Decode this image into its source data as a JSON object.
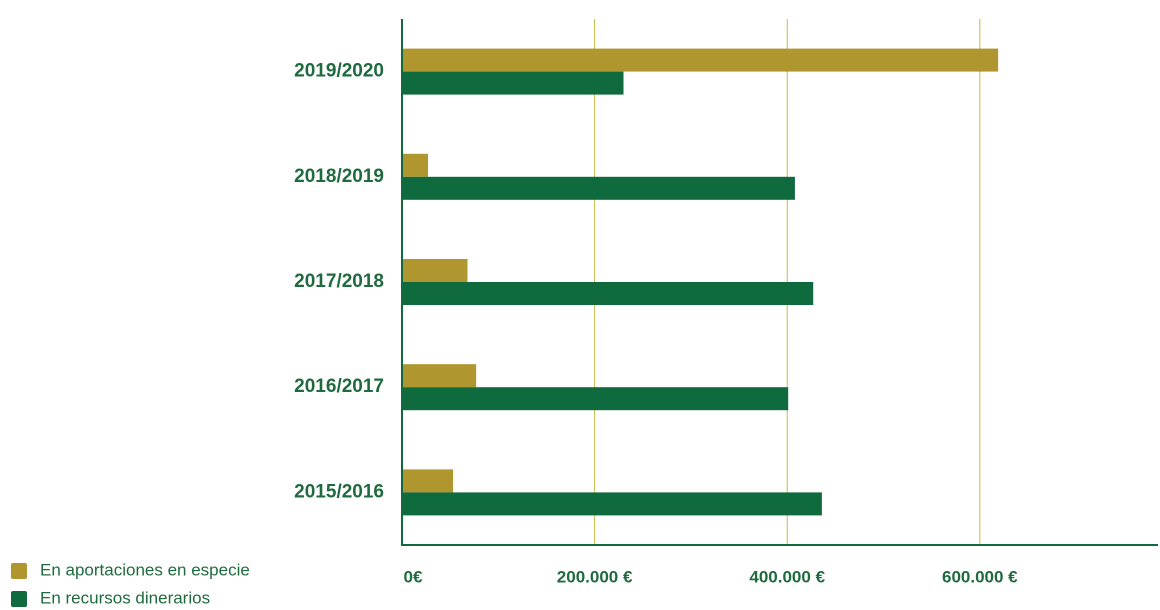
{
  "chart_data": {
    "type": "barh",
    "categories": [
      "2019/2020",
      "2018/2019",
      "2017/2018",
      "2016/2017",
      "2015/2016"
    ],
    "series": [
      {
        "name": "En aportaciones en especie",
        "color": "#b0962e",
        "values": [
          619000,
          27000,
          68000,
          77000,
          53000
        ]
      },
      {
        "name": "En recursos dinerarios",
        "color": "#0f6b3e",
        "values": [
          230000,
          408000,
          427000,
          401000,
          436000
        ]
      }
    ],
    "xlim": [
      0,
      785000
    ],
    "xticks": [
      {
        "value": 0,
        "label": "0€"
      },
      {
        "value": 200000,
        "label": "200.000 €"
      },
      {
        "value": 400000,
        "label": "400.000 €"
      },
      {
        "value": 600000,
        "label": "600.000 €"
      }
    ],
    "grid": true,
    "legend": "bottom-left"
  }
}
